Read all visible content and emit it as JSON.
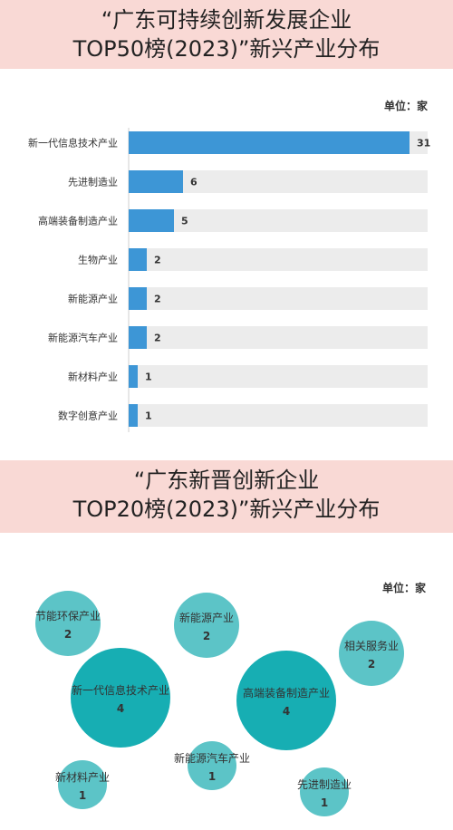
{
  "chart1": {
    "title_line1": "“广东可持续创新发展企业",
    "title_line2": "TOP50榜(2023)”新兴产业分布",
    "unit": "单位：家"
  },
  "chart2": {
    "title_line1": "“广东新晋创新企业",
    "title_line2": "TOP20榜(2023)”新兴产业分布",
    "unit": "单位：家"
  },
  "colors": {
    "banner": "#f9d9d5",
    "bar": "#3d96d6",
    "bar_track": "#ececec",
    "bubble": "#17aeb3",
    "bubble_light": "#5cc4c7"
  },
  "chart_data": [
    {
      "type": "bar",
      "orientation": "horizontal",
      "categories": [
        "新一代信息技术产业",
        "先进制造业",
        "高端装备制造产业",
        "生物产业",
        "新能源产业",
        "新能源汽车产业",
        "新材料产业",
        "数字创意产业"
      ],
      "values": [
        31,
        6,
        5,
        2,
        2,
        2,
        1,
        1
      ],
      "xlim": [
        0,
        33
      ]
    },
    {
      "type": "bubble",
      "categories": [
        "节能环保产业",
        "新能源产业",
        "相关服务业",
        "新一代信息技术产业",
        "高端装备制造产业",
        "新能源汽车产业",
        "新材料产业",
        "先进制造业"
      ],
      "values": [
        2,
        2,
        2,
        4,
        4,
        1,
        1,
        1
      ]
    }
  ]
}
